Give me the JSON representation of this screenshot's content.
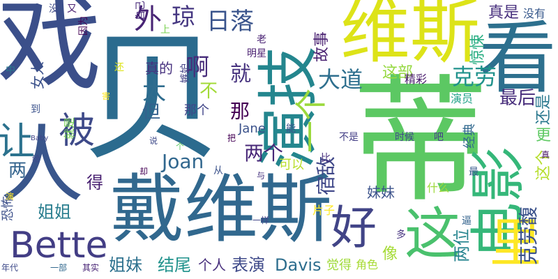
{
  "words": [
    {
      "text": "戏",
      "color": "#3b4f8a"
    },
    {
      "text": "人",
      "color": "#39568c"
    },
    {
      "text": "贝",
      "color": "#2b6b8e"
    },
    {
      "text": "蒂",
      "color": "#5cc863"
    },
    {
      "text": "戴维斯",
      "color": "#31688e"
    },
    {
      "text": "维斯",
      "color": "#dde318"
    },
    {
      "text": "看",
      "color": "#2d708e"
    },
    {
      "text": "演技",
      "color": "#24868e"
    },
    {
      "text": "电影",
      "color": "#35b779"
    },
    {
      "text": "这",
      "color": "#4ac16d"
    },
    {
      "text": "好",
      "color": "#414487"
    },
    {
      "text": "Bette",
      "color": "#433e85"
    },
    {
      "text": "里",
      "color": "#fde725"
    },
    {
      "text": "让",
      "color": "#2c728e"
    },
    {
      "text": "被",
      "color": "#3e4a89"
    },
    {
      "text": "外",
      "color": "#482475"
    },
    {
      "text": "琼",
      "color": "#453781"
    },
    {
      "text": "日落",
      "color": "#3a548c"
    },
    {
      "text": "啊",
      "color": "#472c7a"
    },
    {
      "text": "就",
      "color": "#46327e"
    },
    {
      "text": "大道",
      "color": "#2e6f8e"
    },
    {
      "text": "太",
      "color": "#2f6c8e"
    },
    {
      "text": "一个",
      "color": "#9bd93c"
    },
    {
      "text": "不",
      "color": "#a2da37"
    },
    {
      "text": "那",
      "color": "#440154"
    },
    {
      "text": "但",
      "color": "#34618d"
    },
    {
      "text": "两个",
      "color": "#482878"
    },
    {
      "text": "Joan",
      "color": "#31678e"
    },
    {
      "text": "宿敌",
      "color": "#3f4788"
    },
    {
      "text": "克劳",
      "color": "#20928c"
    },
    {
      "text": "最后",
      "color": "#472d7b"
    },
    {
      "text": "真是",
      "color": "#472f7d"
    },
    {
      "text": "没有",
      "color": "#38598c"
    },
    {
      "text": "故事",
      "color": "#481f70"
    },
    {
      "text": "惊悚",
      "color": "#27ad81"
    },
    {
      "text": "这部",
      "color": "#95d840"
    },
    {
      "text": "女人",
      "color": "#3b518b"
    },
    {
      "text": "两",
      "color": "#33638d"
    },
    {
      "text": "得",
      "color": "#482071"
    },
    {
      "text": "姐姐",
      "color": "#287d8e"
    },
    {
      "text": "姐妹",
      "color": "#2d718e"
    },
    {
      "text": "结尾",
      "color": "#20928c"
    },
    {
      "text": "个人",
      "color": "#472e7c"
    },
    {
      "text": "表演",
      "color": "#3e4989"
    },
    {
      "text": "Davis",
      "color": "#2e6e8e"
    },
    {
      "text": "两位",
      "color": "#25848e"
    },
    {
      "text": "克劳馥",
      "color": "#3b528b"
    },
    {
      "text": "像",
      "color": "#a5db36"
    },
    {
      "text": "更",
      "color": "#5ec962"
    },
    {
      "text": "这个",
      "color": "#b5de2b"
    },
    {
      "text": "还是",
      "color": "#2a788e"
    },
    {
      "text": "妹妹",
      "color": "#3b528b"
    },
    {
      "text": "精彩",
      "color": "#481a6c"
    },
    {
      "text": "演员",
      "color": "#1fa287"
    },
    {
      "text": "真的",
      "color": "#46307e"
    },
    {
      "text": "那个",
      "color": "#404588"
    },
    {
      "text": "Jane",
      "color": "#3b528b"
    },
    {
      "text": "可以",
      "color": "#b8de29"
    },
    {
      "text": "经典",
      "color": "#31688e"
    },
    {
      "text": "恐怖",
      "color": "#3c4f8a"
    },
    {
      "text": "就是",
      "color": "#77d153"
    },
    {
      "text": "觉得",
      "color": "#a0da39"
    },
    {
      "text": "角色",
      "color": "#a8db34"
    },
    {
      "text": "什么",
      "color": "#9dd93b"
    },
    {
      "text": "片子",
      "color": "#fde725"
    },
    {
      "text": "嫉妒",
      "color": "#424186"
    },
    {
      "text": "明星",
      "color": "#481f70"
    },
    {
      "text": "自己",
      "color": "#472a7a"
    },
    {
      "text": "因为",
      "color": "#440154"
    },
    {
      "text": "没",
      "color": "#3e4a89"
    },
    {
      "text": "又",
      "color": "#481d6f"
    },
    {
      "text": "上",
      "color": "#7ad151"
    },
    {
      "text": "老",
      "color": "#482173"
    },
    {
      "text": "能",
      "color": "#3b528b"
    },
    {
      "text": "比",
      "color": "#472f7d"
    },
    {
      "text": "最",
      "color": "#38598c"
    },
    {
      "text": "不是",
      "color": "#433e85"
    },
    {
      "text": "时候",
      "color": "#3f4889"
    },
    {
      "text": "吧",
      "color": "#424086"
    },
    {
      "text": "逼",
      "color": "#33638d"
    },
    {
      "text": "多",
      "color": "#46337f"
    },
    {
      "text": "中",
      "color": "#2a788e"
    },
    {
      "text": "还",
      "color": "#dde318"
    },
    {
      "text": "到",
      "color": "#3b528b"
    },
    {
      "text": "害",
      "color": "#fde725"
    },
    {
      "text": "个",
      "color": "#5ec962"
    },
    {
      "text": "说",
      "color": "#3e4989"
    },
    {
      "text": "把",
      "color": "#440154"
    },
    {
      "text": "从",
      "color": "#3b528b"
    },
    {
      "text": "与",
      "color": "#46327e"
    },
    {
      "text": "一样",
      "color": "#404588"
    },
    {
      "text": "真",
      "color": "#471365"
    },
    {
      "text": "却",
      "color": "#440154"
    },
    {
      "text": "给",
      "color": "#3e4989"
    },
    {
      "text": "Baby",
      "color": "#404588"
    },
    {
      "text": "演",
      "color": "#fde725"
    },
    {
      "text": "年代",
      "color": "#3e4a89"
    },
    {
      "text": "一部",
      "color": "#31688e"
    },
    {
      "text": "其实",
      "color": "#482475"
    }
  ]
}
